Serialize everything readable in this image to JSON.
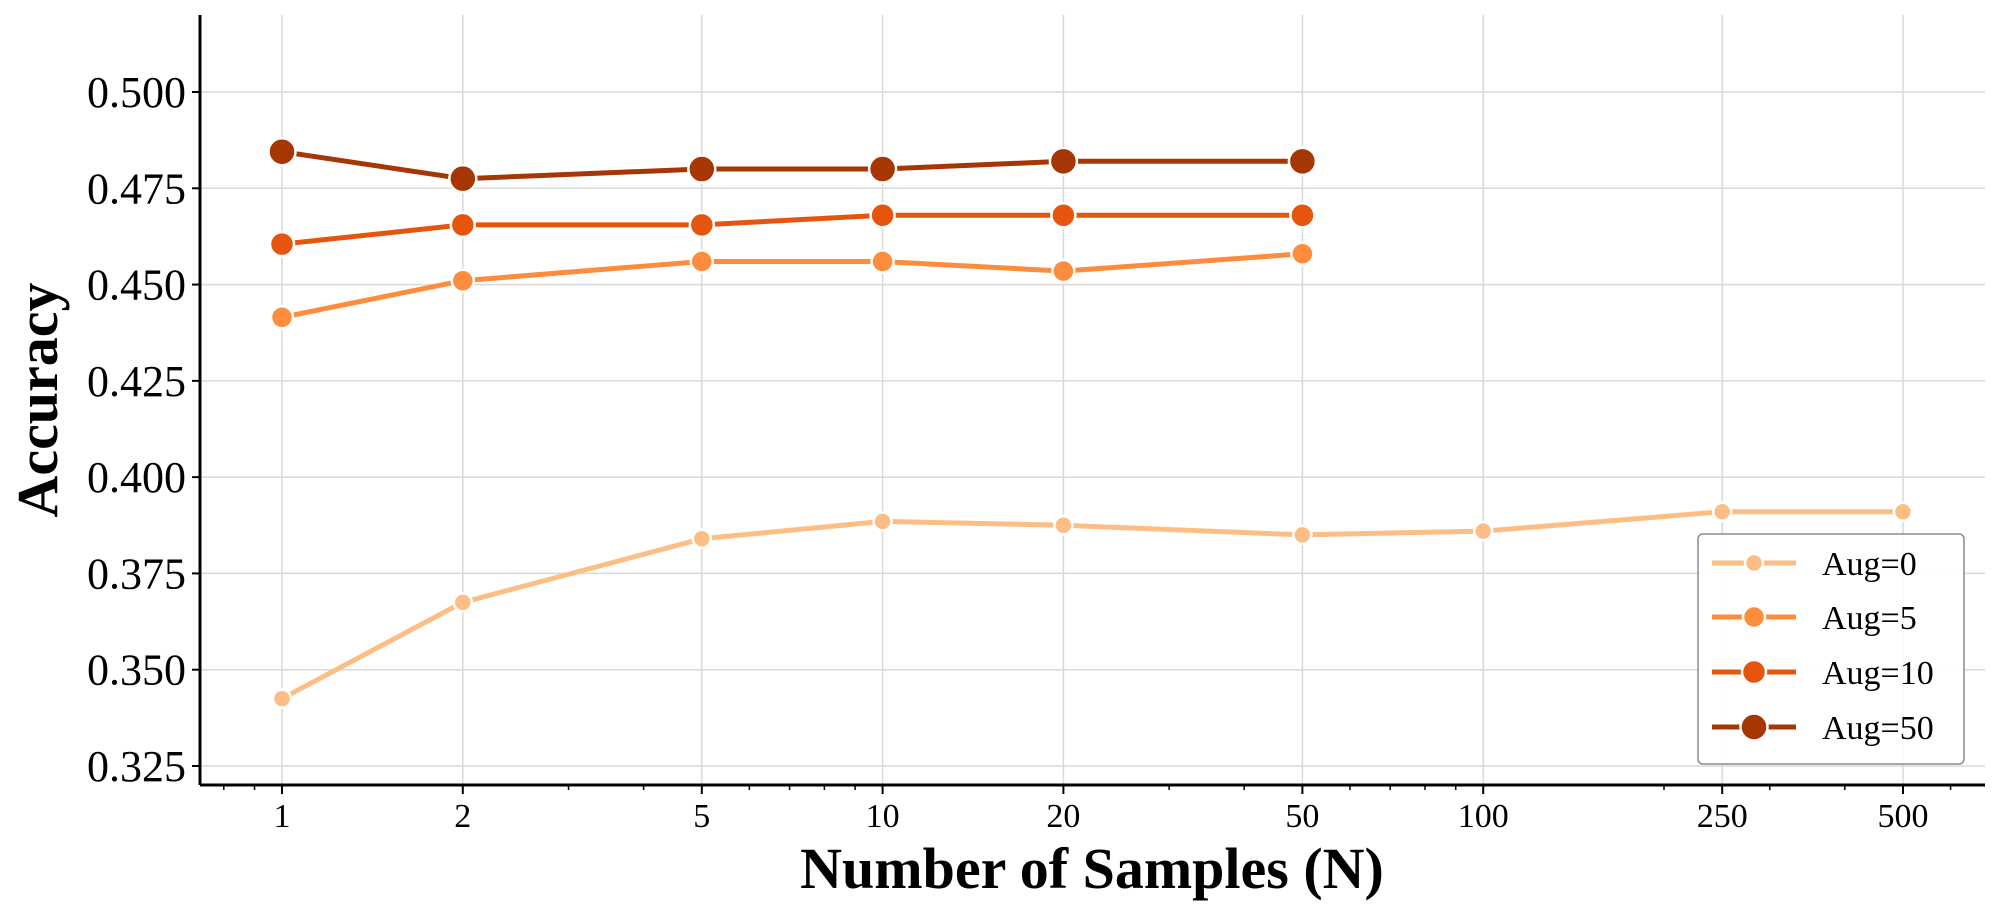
{
  "chart_data": {
    "type": "line",
    "title": "",
    "xlabel": "Number of Samples (N)",
    "ylabel": "Accuracy",
    "x_scale": "log",
    "xlim": [
      0.75,
      700
    ],
    "ylim": [
      0.32,
      0.52
    ],
    "x_ticks": [
      1,
      2,
      5,
      10,
      20,
      50,
      100,
      250,
      500
    ],
    "x_tick_labels": [
      "1",
      "2",
      "5",
      "10",
      "20",
      "50",
      "100",
      "250",
      "500"
    ],
    "y_ticks": [
      0.325,
      0.35,
      0.375,
      0.4,
      0.425,
      0.45,
      0.475,
      0.5
    ],
    "y_tick_labels": [
      "0.325",
      "0.350",
      "0.375",
      "0.400",
      "0.425",
      "0.450",
      "0.475",
      "0.500"
    ],
    "grid": true,
    "legend_position": "lower-right",
    "series": [
      {
        "name": "Aug=0",
        "color": "#fdbe85",
        "x": [
          1,
          2,
          5,
          10,
          20,
          50,
          100,
          250,
          500
        ],
        "y": [
          0.3425,
          0.3675,
          0.384,
          0.3885,
          0.3875,
          0.385,
          0.386,
          0.391,
          0.391
        ]
      },
      {
        "name": "Aug=5",
        "color": "#fd8d3c",
        "x": [
          1,
          2,
          5,
          10,
          20,
          50
        ],
        "y": [
          0.4415,
          0.451,
          0.456,
          0.456,
          0.4535,
          0.458
        ]
      },
      {
        "name": "Aug=10",
        "color": "#e6550d",
        "x": [
          1,
          2,
          5,
          10,
          20,
          50
        ],
        "y": [
          0.4605,
          0.4655,
          0.4655,
          0.468,
          0.468,
          0.468
        ]
      },
      {
        "name": "Aug=50",
        "color": "#a63603",
        "x": [
          1,
          2,
          5,
          10,
          20,
          50
        ],
        "y": [
          0.4845,
          0.4775,
          0.48,
          0.48,
          0.482,
          0.482
        ]
      }
    ]
  }
}
